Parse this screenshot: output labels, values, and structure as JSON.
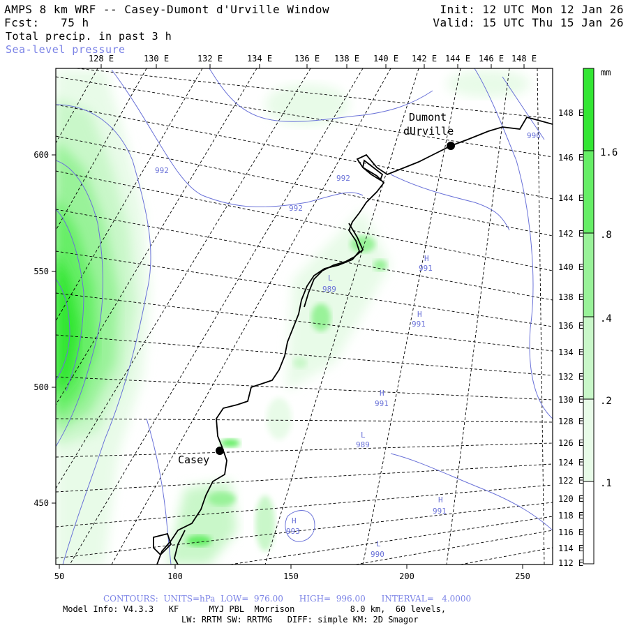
{
  "header": {
    "title_left": "AMPS 8 km WRF -- Casey-Dumont d'Urville Window",
    "fcst_left": "Fcst:   75 h",
    "field_left": "Total precip. in past 3 h",
    "overlay_left": "Sea-level pressure",
    "init_right": "Init: 12 UTC Mon 12 Jan 26",
    "valid_right": "Valid: 15 UTC Thu 15 Jan 26"
  },
  "axes": {
    "top_lon_labels": [
      "128 E",
      "130 E",
      "132 E",
      "134 E",
      "136 E",
      "138 E",
      "140 E",
      "142 E",
      "144 E",
      "146 E",
      "148 E"
    ],
    "right_lon_labels": [
      "148 E",
      "146 E",
      "144 E",
      "142 E",
      "140 E",
      "138 E",
      "136 E",
      "134 E",
      "132 E",
      "130 E",
      "128 E",
      "126 E",
      "124 E",
      "122 E",
      "120 E",
      "118 E",
      "116 E",
      "114 E",
      "112 E"
    ],
    "bottom_grid_labels": [
      "50",
      "100",
      "150",
      "200",
      "250"
    ],
    "left_grid_labels": [
      "600",
      "550",
      "500",
      "450"
    ]
  },
  "colorbar": {
    "unit": "mm",
    "labels": [
      "1.6",
      ".8",
      ".4",
      ".2",
      ".1"
    ],
    "colors": [
      "#33e633",
      "#66ee66",
      "#99f299",
      "#c9f7c9",
      "#e8fbe8",
      "#ffffff"
    ]
  },
  "places": {
    "dumont_line1": "Dumont",
    "dumont_line2": "dUrville",
    "casey": "Casey"
  },
  "contour_labels": [
    {
      "text": "992"
    },
    {
      "text": "992"
    },
    {
      "text": "992"
    },
    {
      "text": "996"
    },
    {
      "text": "H"
    },
    {
      "text": "991"
    },
    {
      "text": "H"
    },
    {
      "text": "991"
    },
    {
      "text": "L"
    },
    {
      "text": "989"
    },
    {
      "text": "H"
    },
    {
      "text": "991"
    },
    {
      "text": "L"
    },
    {
      "text": "989"
    },
    {
      "text": "H"
    },
    {
      "text": "991"
    },
    {
      "text": "H"
    },
    {
      "text": "993"
    },
    {
      "text": "L"
    },
    {
      "text": "990"
    }
  ],
  "footer": {
    "contours": "CONTOURS:  UNITS=hPa  LOW=  976.00      HIGH=  996.00      INTERVAL=   4.0000",
    "model_info": "Model Info: V4.3.3   KF      MYJ PBL  Morrison           8.0 km,  60 levels,",
    "physics": "LW: RRTM SW: RRTMG   DIFF: simple KM: 2D Smagor"
  }
}
